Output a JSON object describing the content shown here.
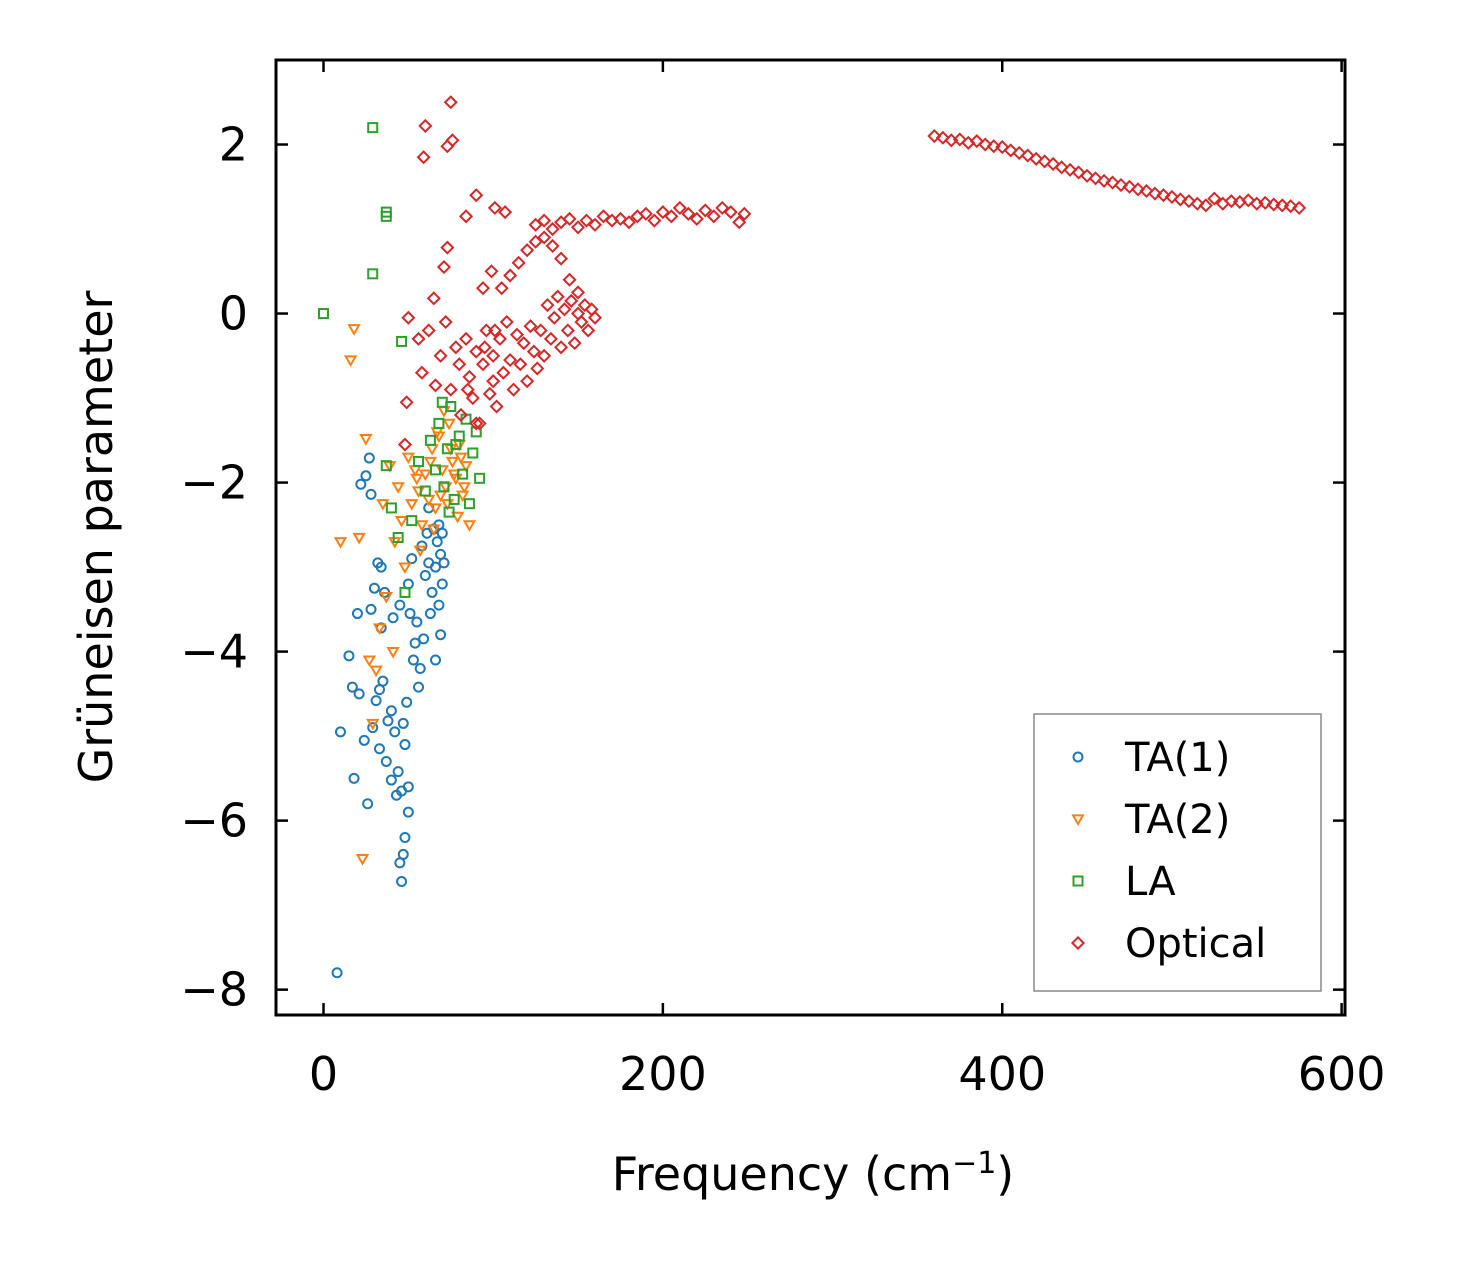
{
  "chart_data": {
    "type": "scatter",
    "title": "",
    "xlabel": "Frequency (cm",
    "xlabel_sup": "−1",
    "xlabel_close": ")",
    "ylabel": "Grüneisen parameter",
    "xlim": [
      -28,
      602
    ],
    "ylim": [
      -8.3,
      3.0
    ],
    "xticks": [
      0,
      200,
      400,
      600
    ],
    "yticks": [
      -8,
      -6,
      -4,
      -2,
      0,
      2
    ],
    "xtick_labels": [
      "0",
      "200",
      "400",
      "600"
    ],
    "ytick_labels": [
      "−8",
      "−6",
      "−4",
      "−2",
      "0",
      "2"
    ],
    "legend_position": "lower-right",
    "series": [
      {
        "name": "TA(1)",
        "marker": "circle",
        "color": "#1f77b4",
        "x": [
          8,
          15,
          17,
          20,
          22,
          25,
          27,
          28,
          30,
          31,
          32,
          33,
          34,
          35,
          36,
          38,
          40,
          41,
          42,
          44,
          45,
          46,
          46,
          47,
          47,
          48,
          49,
          50,
          50,
          51,
          52,
          53,
          55,
          56,
          57,
          58,
          59,
          60,
          61,
          62,
          63,
          64,
          65,
          66,
          66,
          67,
          68,
          68,
          69,
          69,
          70,
          70,
          71,
          24,
          26,
          29,
          33,
          37,
          43,
          54,
          62,
          10,
          18,
          21,
          28,
          34,
          40,
          45,
          48,
          50
        ],
        "y": [
          -7.8,
          -4.05,
          -4.42,
          -3.55,
          -2.02,
          -1.92,
          -1.71,
          -2.14,
          -3.25,
          -4.58,
          -2.95,
          -4.45,
          -3.72,
          -4.35,
          -3.3,
          -4.82,
          -5.52,
          -3.6,
          -4.95,
          -5.42,
          -3.45,
          -6.72,
          -5.65,
          -6.4,
          -4.85,
          -5.1,
          -4.6,
          -3.2,
          -5.9,
          -3.55,
          -2.9,
          -4.1,
          -3.65,
          -4.42,
          -4.2,
          -2.75,
          -3.85,
          -3.1,
          -2.6,
          -2.95,
          -3.55,
          -3.3,
          -2.55,
          -4.1,
          -3.0,
          -2.7,
          -3.45,
          -2.5,
          -3.8,
          -2.85,
          -3.2,
          -2.6,
          -2.95,
          -5.05,
          -5.8,
          -4.9,
          -5.15,
          -5.3,
          -5.7,
          -3.9,
          -2.3,
          -4.95,
          -5.5,
          -4.5,
          -3.5,
          -3.0,
          -4.7,
          -6.5,
          -6.2,
          -5.6
        ]
      },
      {
        "name": "TA(2)",
        "marker": "triangle-down",
        "color": "#ff7f0e",
        "x": [
          10,
          16,
          18,
          21,
          23,
          25,
          27,
          29,
          31,
          33,
          35,
          37,
          39,
          41,
          42,
          44,
          46,
          48,
          50,
          52,
          54,
          56,
          58,
          60,
          62,
          64,
          66,
          68,
          70,
          72,
          74,
          76,
          78,
          80,
          82,
          84,
          86,
          71,
          73,
          75,
          77,
          79,
          81,
          83,
          67,
          69,
          63,
          65,
          55,
          57
        ],
        "y": [
          -2.7,
          -0.55,
          -0.18,
          -2.65,
          -6.45,
          -1.48,
          -4.1,
          -4.85,
          -4.22,
          -3.72,
          -2.25,
          -3.35,
          -1.8,
          -4.0,
          -2.7,
          -2.05,
          -2.45,
          -3.0,
          -1.7,
          -2.25,
          -1.85,
          -2.1,
          -2.5,
          -1.9,
          -2.2,
          -1.6,
          -2.3,
          -1.45,
          -1.85,
          -2.05,
          -1.3,
          -1.75,
          -1.95,
          -1.55,
          -2.15,
          -1.8,
          -2.5,
          -1.15,
          -2.25,
          -1.6,
          -1.9,
          -2.4,
          -1.7,
          -2.05,
          -1.4,
          -2.15,
          -1.75,
          -2.55,
          -1.95,
          -2.8
        ]
      },
      {
        "name": "LA",
        "marker": "square",
        "color": "#2ca02c",
        "x": [
          0,
          29,
          29,
          37,
          37,
          46,
          37,
          40,
          44,
          48,
          52,
          56,
          60,
          63,
          66,
          68,
          71,
          73,
          75,
          77,
          80,
          82,
          84,
          86,
          88,
          90,
          92,
          70,
          74,
          78
        ],
        "y": [
          0.0,
          2.2,
          0.47,
          1.2,
          1.15,
          -0.33,
          -1.8,
          -2.3,
          -2.65,
          -3.3,
          -2.45,
          -1.75,
          -2.1,
          -1.5,
          -1.85,
          -1.3,
          -2.05,
          -1.6,
          -1.1,
          -2.2,
          -1.45,
          -1.9,
          -1.25,
          -2.25,
          -1.65,
          -1.4,
          -1.95,
          -1.05,
          -2.35,
          -1.55
        ]
      },
      {
        "name": "Optical",
        "marker": "diamond",
        "color": "#d62728",
        "x": [
          75,
          60,
          76,
          59,
          73,
          90,
          101,
          84,
          107,
          73,
          71,
          49,
          65,
          99,
          94,
          101,
          48,
          50,
          56,
          58,
          62,
          66,
          69,
          72,
          75,
          78,
          81,
          84,
          86,
          88,
          90,
          92,
          94,
          96,
          98,
          100,
          102,
          104,
          106,
          108,
          110,
          112,
          114,
          116,
          118,
          120,
          122,
          124,
          126,
          128,
          130,
          132,
          134,
          136,
          138,
          140,
          142,
          144,
          146,
          148,
          150,
          152,
          154,
          156,
          158,
          160,
          80,
          85,
          90,
          95,
          100,
          105,
          110,
          115,
          120,
          125,
          130,
          135,
          140,
          145,
          150,
          125,
          130,
          135,
          140,
          145,
          150,
          155,
          160,
          165,
          170,
          175,
          180,
          185,
          190,
          195,
          200,
          205,
          210,
          215,
          220,
          225,
          230,
          235,
          240,
          245,
          248,
          360,
          365,
          370,
          375,
          380,
          385,
          390,
          395,
          400,
          405,
          410,
          415,
          420,
          425,
          430,
          435,
          440,
          445,
          450,
          455,
          460,
          465,
          470,
          475,
          480,
          485,
          490,
          495,
          500,
          505,
          510,
          515,
          520,
          525,
          530,
          535,
          540,
          545,
          550,
          555,
          560,
          565,
          570,
          575
        ],
        "y": [
          2.5,
          2.22,
          2.05,
          1.85,
          1.98,
          1.4,
          1.25,
          1.15,
          1.2,
          0.78,
          0.55,
          -1.05,
          0.18,
          0.5,
          0.3,
          -0.2,
          -1.55,
          -0.05,
          -0.3,
          -0.7,
          -0.2,
          -0.85,
          -0.5,
          -0.1,
          -0.9,
          -0.4,
          -1.2,
          -0.3,
          -0.75,
          -1.0,
          -0.45,
          -1.3,
          -0.6,
          -0.2,
          -0.95,
          -0.5,
          -1.1,
          -0.3,
          -0.7,
          -0.1,
          -0.55,
          -0.9,
          -0.25,
          -0.6,
          -0.35,
          -0.8,
          -0.15,
          -0.45,
          -0.65,
          -0.2,
          -0.5,
          0.1,
          -0.3,
          -0.05,
          0.2,
          -0.4,
          0.05,
          -0.2,
          0.15,
          -0.35,
          0.0,
          -0.1,
          0.1,
          -0.2,
          0.05,
          -0.05,
          -0.6,
          -0.9,
          -1.3,
          -0.4,
          -0.8,
          0.3,
          0.45,
          0.6,
          0.75,
          0.85,
          0.9,
          0.8,
          0.65,
          0.4,
          0.25,
          1.05,
          1.1,
          1.0,
          1.08,
          1.12,
          1.02,
          1.1,
          1.05,
          1.15,
          1.1,
          1.12,
          1.08,
          1.15,
          1.18,
          1.1,
          1.2,
          1.15,
          1.25,
          1.18,
          1.12,
          1.22,
          1.15,
          1.25,
          1.2,
          1.08,
          1.18,
          2.1,
          2.08,
          2.05,
          2.06,
          2.02,
          2.04,
          2.0,
          1.98,
          1.97,
          1.93,
          1.9,
          1.87,
          1.83,
          1.8,
          1.77,
          1.73,
          1.7,
          1.67,
          1.63,
          1.6,
          1.57,
          1.55,
          1.52,
          1.5,
          1.47,
          1.45,
          1.42,
          1.4,
          1.38,
          1.35,
          1.33,
          1.3,
          1.28,
          1.36,
          1.3,
          1.33,
          1.32,
          1.34,
          1.3,
          1.31,
          1.29,
          1.28,
          1.27,
          1.25
        ]
      }
    ]
  }
}
